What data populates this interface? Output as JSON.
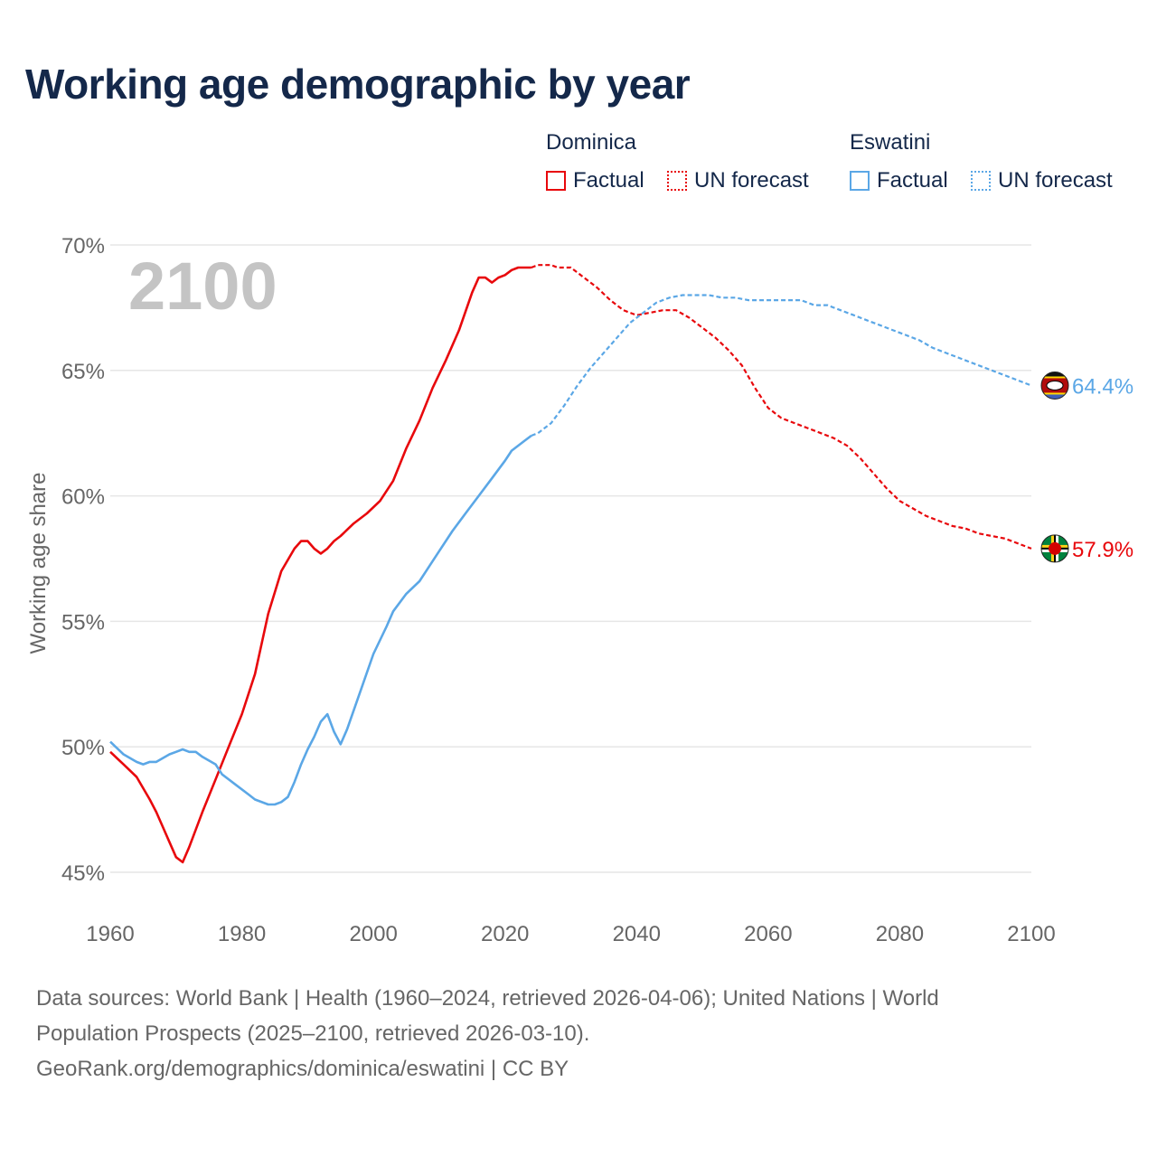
{
  "title": "Working age demographic by year",
  "legend": {
    "groups": [
      {
        "name": "Dominica",
        "factual": "Factual",
        "forecast": "UN forecast",
        "color": "#e8080c"
      },
      {
        "name": "Eswatini",
        "factual": "Factual",
        "forecast": "UN forecast",
        "color": "#5ba7e6"
      }
    ]
  },
  "year_watermark": "2100",
  "footer": {
    "line1": "Data sources: World Bank | Health (1960–2024, retrieved 2026-04-06); United Nations | World",
    "line2": "Population Prospects (2025–2100, retrieved 2026-03-10).",
    "line3": "GeoRank.org/demographics/dominica/eswatini | CC BY"
  },
  "chart_data": {
    "type": "line",
    "title": "Working age demographic by year",
    "xlabel": "",
    "ylabel": "Working age share",
    "xlim": [
      1960,
      2100
    ],
    "ylim": [
      45,
      70
    ],
    "x_ticks": [
      1960,
      1980,
      2000,
      2020,
      2040,
      2060,
      2080,
      2100
    ],
    "x_tick_labels": [
      "1960",
      "1980",
      "2000",
      "2020",
      "2040",
      "2060",
      "2080",
      "2100"
    ],
    "y_ticks": [
      45,
      50,
      55,
      60,
      65,
      70
    ],
    "y_tick_labels": [
      "45%",
      "50%",
      "55%",
      "60%",
      "65%",
      "70%"
    ],
    "grid": true,
    "factual_end_year": 2024,
    "series": [
      {
        "name": "Dominica",
        "color": "#e8080c",
        "end_label": "57.9%",
        "flag": "dominica",
        "points": [
          [
            1960,
            49.8
          ],
          [
            1962,
            49.3
          ],
          [
            1964,
            48.8
          ],
          [
            1966,
            47.9
          ],
          [
            1967,
            47.4
          ],
          [
            1968,
            46.8
          ],
          [
            1969,
            46.2
          ],
          [
            1970,
            45.6
          ],
          [
            1971,
            45.4
          ],
          [
            1972,
            46.0
          ],
          [
            1974,
            47.4
          ],
          [
            1976,
            48.7
          ],
          [
            1978,
            50.0
          ],
          [
            1980,
            51.3
          ],
          [
            1982,
            52.9
          ],
          [
            1984,
            55.3
          ],
          [
            1986,
            57.0
          ],
          [
            1988,
            57.9
          ],
          [
            1989,
            58.2
          ],
          [
            1990,
            58.2
          ],
          [
            1991,
            57.9
          ],
          [
            1992,
            57.7
          ],
          [
            1993,
            57.9
          ],
          [
            1994,
            58.2
          ],
          [
            1995,
            58.4
          ],
          [
            1997,
            58.9
          ],
          [
            1999,
            59.3
          ],
          [
            2001,
            59.8
          ],
          [
            2003,
            60.6
          ],
          [
            2005,
            61.9
          ],
          [
            2007,
            63.0
          ],
          [
            2009,
            64.3
          ],
          [
            2011,
            65.4
          ],
          [
            2013,
            66.6
          ],
          [
            2015,
            68.1
          ],
          [
            2016,
            68.7
          ],
          [
            2017,
            68.7
          ],
          [
            2018,
            68.5
          ],
          [
            2019,
            68.7
          ],
          [
            2020,
            68.8
          ],
          [
            2021,
            69.0
          ],
          [
            2022,
            69.1
          ],
          [
            2023,
            69.1
          ],
          [
            2024,
            69.1
          ],
          [
            2025,
            69.2
          ],
          [
            2027,
            69.2
          ],
          [
            2028,
            69.1
          ],
          [
            2030,
            69.1
          ],
          [
            2032,
            68.7
          ],
          [
            2034,
            68.3
          ],
          [
            2036,
            67.8
          ],
          [
            2038,
            67.4
          ],
          [
            2040,
            67.2
          ],
          [
            2042,
            67.3
          ],
          [
            2044,
            67.4
          ],
          [
            2046,
            67.4
          ],
          [
            2048,
            67.1
          ],
          [
            2050,
            66.7
          ],
          [
            2052,
            66.3
          ],
          [
            2054,
            65.8
          ],
          [
            2056,
            65.2
          ],
          [
            2058,
            64.3
          ],
          [
            2060,
            63.5
          ],
          [
            2062,
            63.1
          ],
          [
            2064,
            62.9
          ],
          [
            2066,
            62.7
          ],
          [
            2068,
            62.5
          ],
          [
            2070,
            62.3
          ],
          [
            2072,
            62.0
          ],
          [
            2074,
            61.5
          ],
          [
            2076,
            60.9
          ],
          [
            2078,
            60.3
          ],
          [
            2080,
            59.8
          ],
          [
            2082,
            59.5
          ],
          [
            2084,
            59.2
          ],
          [
            2086,
            59.0
          ],
          [
            2088,
            58.8
          ],
          [
            2090,
            58.7
          ],
          [
            2092,
            58.5
          ],
          [
            2094,
            58.4
          ],
          [
            2096,
            58.3
          ],
          [
            2098,
            58.1
          ],
          [
            2100,
            57.9
          ]
        ]
      },
      {
        "name": "Eswatini",
        "color": "#5ba7e6",
        "end_label": "64.4%",
        "flag": "eswatini",
        "points": [
          [
            1960,
            50.2
          ],
          [
            1962,
            49.7
          ],
          [
            1964,
            49.4
          ],
          [
            1965,
            49.3
          ],
          [
            1966,
            49.4
          ],
          [
            1967,
            49.4
          ],
          [
            1969,
            49.7
          ],
          [
            1970,
            49.8
          ],
          [
            1971,
            49.9
          ],
          [
            1972,
            49.8
          ],
          [
            1973,
            49.8
          ],
          [
            1974,
            49.6
          ],
          [
            1976,
            49.3
          ],
          [
            1977,
            48.9
          ],
          [
            1979,
            48.5
          ],
          [
            1981,
            48.1
          ],
          [
            1982,
            47.9
          ],
          [
            1984,
            47.7
          ],
          [
            1985,
            47.7
          ],
          [
            1986,
            47.8
          ],
          [
            1987,
            48.0
          ],
          [
            1988,
            48.6
          ],
          [
            1989,
            49.3
          ],
          [
            1990,
            49.9
          ],
          [
            1991,
            50.4
          ],
          [
            1992,
            51.0
          ],
          [
            1993,
            51.3
          ],
          [
            1994,
            50.6
          ],
          [
            1995,
            50.1
          ],
          [
            1996,
            50.7
          ],
          [
            1998,
            52.2
          ],
          [
            2000,
            53.7
          ],
          [
            2002,
            54.8
          ],
          [
            2003,
            55.4
          ],
          [
            2005,
            56.1
          ],
          [
            2007,
            56.6
          ],
          [
            2009,
            57.4
          ],
          [
            2010,
            57.8
          ],
          [
            2012,
            58.6
          ],
          [
            2014,
            59.3
          ],
          [
            2016,
            60.0
          ],
          [
            2018,
            60.7
          ],
          [
            2020,
            61.4
          ],
          [
            2021,
            61.8
          ],
          [
            2023,
            62.2
          ],
          [
            2024,
            62.4
          ],
          [
            2025,
            62.5
          ],
          [
            2027,
            62.9
          ],
          [
            2029,
            63.6
          ],
          [
            2031,
            64.4
          ],
          [
            2033,
            65.1
          ],
          [
            2035,
            65.7
          ],
          [
            2037,
            66.3
          ],
          [
            2039,
            66.9
          ],
          [
            2041,
            67.3
          ],
          [
            2043,
            67.7
          ],
          [
            2045,
            67.9
          ],
          [
            2047,
            68.0
          ],
          [
            2049,
            68.0
          ],
          [
            2051,
            68.0
          ],
          [
            2053,
            67.9
          ],
          [
            2055,
            67.9
          ],
          [
            2057,
            67.8
          ],
          [
            2059,
            67.8
          ],
          [
            2061,
            67.8
          ],
          [
            2063,
            67.8
          ],
          [
            2065,
            67.8
          ],
          [
            2067,
            67.6
          ],
          [
            2069,
            67.6
          ],
          [
            2071,
            67.4
          ],
          [
            2073,
            67.2
          ],
          [
            2075,
            67.0
          ],
          [
            2077,
            66.8
          ],
          [
            2079,
            66.6
          ],
          [
            2081,
            66.4
          ],
          [
            2083,
            66.2
          ],
          [
            2085,
            65.9
          ],
          [
            2087,
            65.7
          ],
          [
            2089,
            65.5
          ],
          [
            2091,
            65.3
          ],
          [
            2093,
            65.1
          ],
          [
            2095,
            64.9
          ],
          [
            2097,
            64.7
          ],
          [
            2099,
            64.5
          ],
          [
            2100,
            64.4
          ]
        ]
      }
    ]
  }
}
